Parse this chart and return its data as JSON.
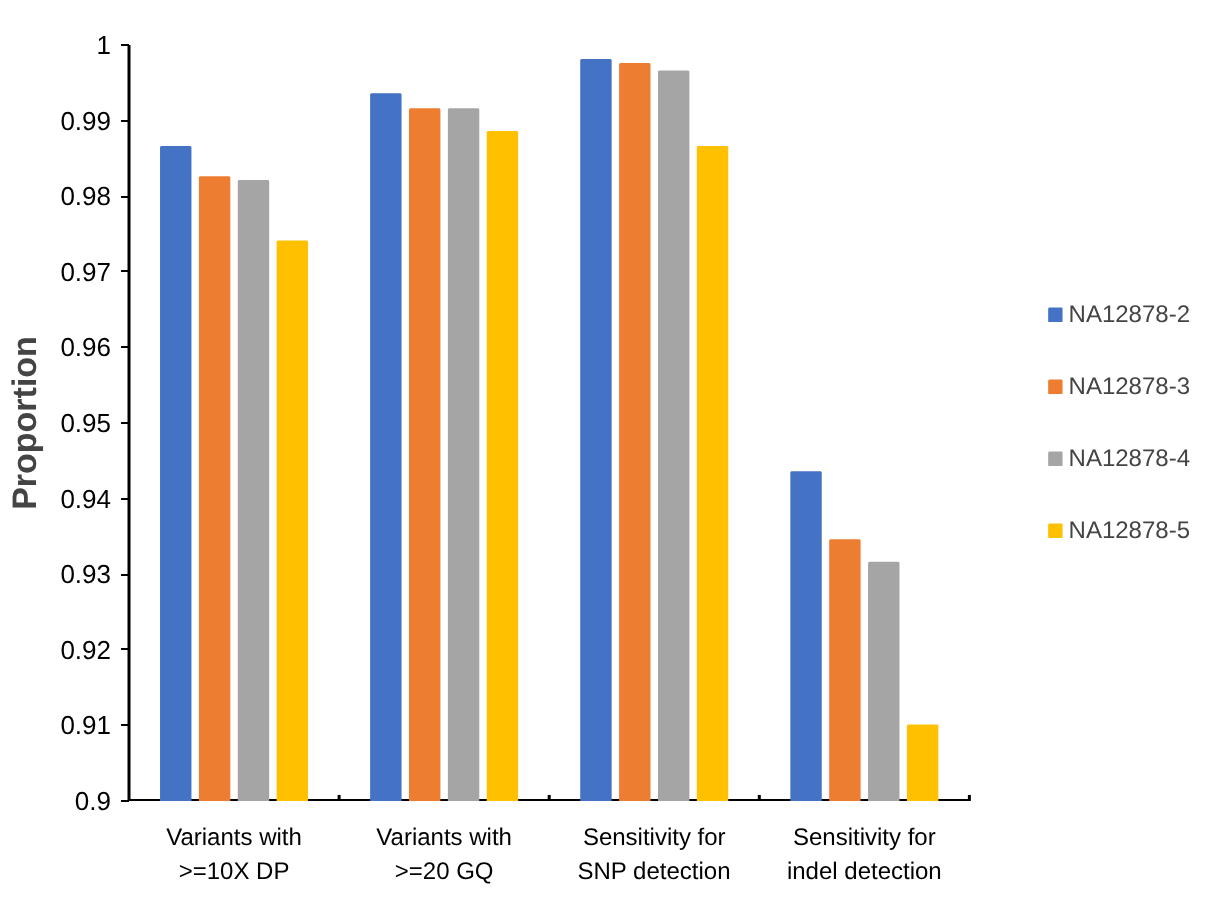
{
  "chart_data": {
    "type": "bar",
    "ylabel": "Proportion",
    "categories": [
      "Variants with\n>=10X DP",
      "Variants with\n>=20 GQ",
      "Sensitivity for\nSNP detection",
      "Sensitivity for\nindel detection"
    ],
    "series": [
      {
        "name": "NA12878-2",
        "color": "#4472c4",
        "values": [
          0.9865,
          0.9935,
          0.998,
          0.9435
        ]
      },
      {
        "name": "NA12878-3",
        "color": "#ed7d31",
        "values": [
          0.9825,
          0.9915,
          0.9975,
          0.9345
        ]
      },
      {
        "name": "NA12878-4",
        "color": "#a5a5a5",
        "values": [
          0.982,
          0.9915,
          0.9965,
          0.9315
        ]
      },
      {
        "name": "NA12878-5",
        "color": "#ffc000",
        "values": [
          0.974,
          0.9885,
          0.9865,
          0.91
        ]
      }
    ],
    "ylim": [
      0.9,
      1
    ],
    "yticks": [
      0.9,
      0.91,
      0.92,
      0.93,
      0.94,
      0.95,
      0.96,
      0.97,
      0.98,
      0.99,
      1
    ],
    "grid": false,
    "legend": "right"
  }
}
